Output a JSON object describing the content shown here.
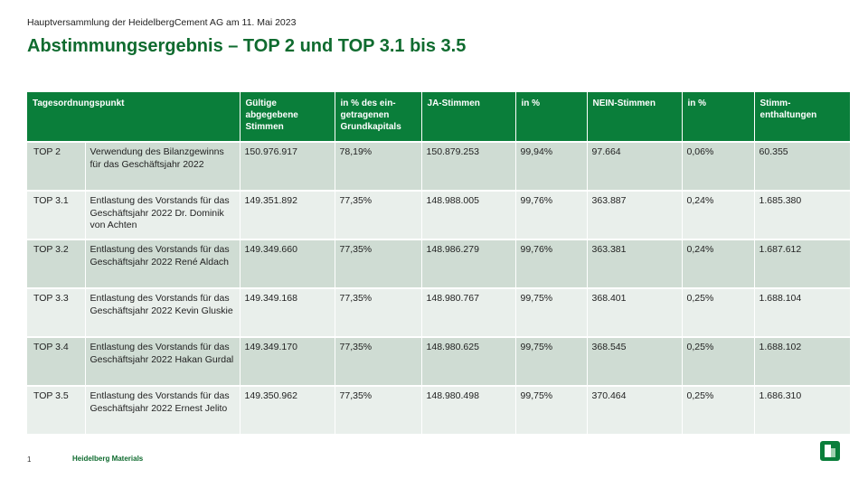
{
  "header": {
    "subtitle": "Hauptversammlung der HeidelbergCement AG am 11. Mai 2023",
    "title": "Abstimmungsergebnis – TOP 2 und TOP 3.1 bis 3.5"
  },
  "table": {
    "columns": [
      "Tagesordnungspunkt",
      "Gültige abgegebene Stimmen",
      "in % des ein-getragenen Grundkapitals",
      "JA-Stimmen",
      "in %",
      "NEIN-Stimmen",
      "in %",
      "Stimm-enthaltungen"
    ],
    "rows": [
      {
        "top": "TOP 2",
        "desc": "Verwendung des Bilanzgewinns für das Geschäftsjahr 2022",
        "valid": "150.976.917",
        "pct_capital": "78,19%",
        "yes": "150.879.253",
        "yes_pct": "99,94%",
        "no": "97.664",
        "no_pct": "0,06%",
        "abstain": "60.355"
      },
      {
        "top": "TOP 3.1",
        "desc": "Entlastung des Vorstands für das Geschäftsjahr 2022 Dr. Dominik von Achten",
        "valid": "149.351.892",
        "pct_capital": "77,35%",
        "yes": "148.988.005",
        "yes_pct": "99,76%",
        "no": "363.887",
        "no_pct": "0,24%",
        "abstain": "1.685.380"
      },
      {
        "top": "TOP 3.2",
        "desc": "Entlastung des Vorstands für das Geschäftsjahr 2022 René Aldach",
        "valid": "149.349.660",
        "pct_capital": "77,35%",
        "yes": "148.986.279",
        "yes_pct": "99,76%",
        "no": "363.381",
        "no_pct": "0,24%",
        "abstain": "1.687.612"
      },
      {
        "top": "TOP 3.3",
        "desc": "Entlastung des Vorstands für das Geschäftsjahr 2022 Kevin Gluskie",
        "valid": "149.349.168",
        "pct_capital": "77,35%",
        "yes": "148.980.767",
        "yes_pct": "99,75%",
        "no": "368.401",
        "no_pct": "0,25%",
        "abstain": "1.688.104"
      },
      {
        "top": "TOP 3.4",
        "desc": "Entlastung des Vorstands für das Geschäftsjahr 2022 Hakan Gurdal",
        "valid": "149.349.170",
        "pct_capital": "77,35%",
        "yes": "148.980.625",
        "yes_pct": "99,75%",
        "no": "368.545",
        "no_pct": "0,25%",
        "abstain": "1.688.102"
      },
      {
        "top": "TOP 3.5",
        "desc": "Entlastung des Vorstands für das Geschäftsjahr 2022 Ernest Jelito",
        "valid": "149.350.962",
        "pct_capital": "77,35%",
        "yes": "148.980.498",
        "yes_pct": "99,75%",
        "no": "370.464",
        "no_pct": "0,25%",
        "abstain": "1.686.310"
      }
    ]
  },
  "footer": {
    "page_number": "1",
    "brand": "Heidelberg Materials",
    "logo_icon": "heidelberg-materials-logo-icon"
  },
  "colors": {
    "brand_green": "#0a7e3a",
    "row_dark": "#cfdcd3",
    "row_light": "#e9efeb"
  }
}
